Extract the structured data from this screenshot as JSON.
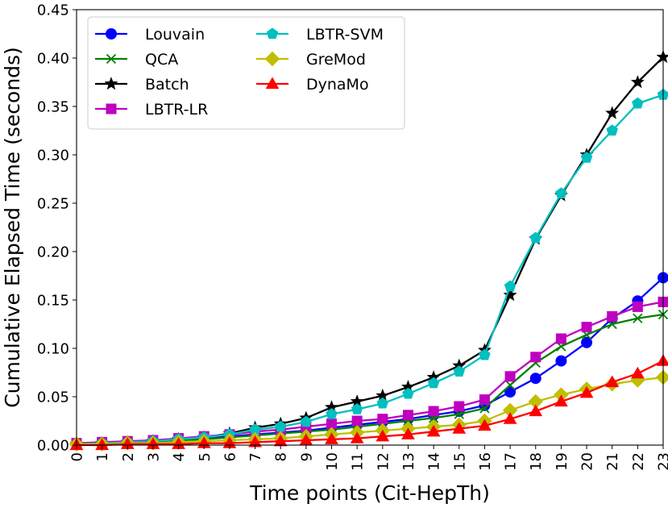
{
  "chart_data": {
    "type": "line",
    "xlabel": "Time points (Cit-HepTh)",
    "ylabel": "Cumulative Elapsed Time (seconds)",
    "xlim": [
      0,
      23
    ],
    "ylim": [
      0,
      0.45
    ],
    "x_ticks": [
      "0",
      "1",
      "2",
      "3",
      "4",
      "5",
      "6",
      "7",
      "8",
      "9",
      "10",
      "11",
      "12",
      "13",
      "14",
      "15",
      "16",
      "17",
      "18",
      "19",
      "20",
      "21",
      "22",
      "23"
    ],
    "y_ticks": [
      "0.00",
      "0.05",
      "0.10",
      "0.15",
      "0.20",
      "0.25",
      "0.30",
      "0.35",
      "0.40",
      "0.45"
    ],
    "y_tick_values": [
      0,
      0.05,
      0.1,
      0.15,
      0.2,
      0.25,
      0.3,
      0.35,
      0.4,
      0.45
    ],
    "legend_position": "upper-left",
    "x": [
      0,
      1,
      2,
      3,
      4,
      5,
      6,
      7,
      8,
      9,
      10,
      11,
      12,
      13,
      14,
      15,
      16,
      17,
      18,
      19,
      20,
      21,
      22,
      23
    ],
    "series": [
      {
        "name": "Louvain",
        "color": "#0000ff",
        "marker": "circle",
        "values": [
          0.001,
          0.002,
          0.003,
          0.004,
          0.005,
          0.007,
          0.009,
          0.011,
          0.013,
          0.015,
          0.018,
          0.021,
          0.024,
          0.027,
          0.031,
          0.035,
          0.041,
          0.055,
          0.069,
          0.087,
          0.106,
          0.131,
          0.149,
          0.173
        ]
      },
      {
        "name": "QCA",
        "color": "#008000",
        "marker": "x",
        "values": [
          0.001,
          0.002,
          0.003,
          0.004,
          0.005,
          0.006,
          0.008,
          0.01,
          0.012,
          0.014,
          0.016,
          0.019,
          0.022,
          0.025,
          0.028,
          0.032,
          0.038,
          0.062,
          0.085,
          0.102,
          0.114,
          0.125,
          0.131,
          0.135
        ]
      },
      {
        "name": "Batch",
        "color": "#000000",
        "marker": "star",
        "values": [
          0.001,
          0.002,
          0.003,
          0.004,
          0.006,
          0.008,
          0.012,
          0.018,
          0.022,
          0.028,
          0.039,
          0.045,
          0.051,
          0.06,
          0.07,
          0.082,
          0.098,
          0.155,
          0.213,
          0.258,
          0.3,
          0.343,
          0.375,
          0.401
        ]
      },
      {
        "name": "LBTR-LR",
        "color": "#bf00bf",
        "marker": "square",
        "values": [
          0.002,
          0.003,
          0.004,
          0.005,
          0.007,
          0.009,
          0.011,
          0.014,
          0.016,
          0.019,
          0.022,
          0.025,
          0.027,
          0.031,
          0.035,
          0.04,
          0.047,
          0.071,
          0.091,
          0.11,
          0.122,
          0.133,
          0.143,
          0.148
        ]
      },
      {
        "name": "LBTR-SVM",
        "color": "#00bfbf",
        "marker": "pentagon",
        "values": [
          0.001,
          0.002,
          0.003,
          0.004,
          0.006,
          0.008,
          0.011,
          0.016,
          0.019,
          0.024,
          0.032,
          0.037,
          0.043,
          0.053,
          0.064,
          0.076,
          0.093,
          0.164,
          0.214,
          0.26,
          0.297,
          0.325,
          0.353,
          0.362
        ]
      },
      {
        "name": "GreMod",
        "color": "#bfbf00",
        "marker": "diamond",
        "values": [
          0.001,
          0.001,
          0.002,
          0.002,
          0.003,
          0.004,
          0.005,
          0.006,
          0.007,
          0.009,
          0.011,
          0.013,
          0.015,
          0.017,
          0.019,
          0.021,
          0.025,
          0.036,
          0.045,
          0.052,
          0.058,
          0.063,
          0.067,
          0.07
        ]
      },
      {
        "name": "DynaMo",
        "color": "#ff0000",
        "marker": "triangle",
        "values": [
          0.0,
          0.0,
          0.001,
          0.001,
          0.001,
          0.002,
          0.002,
          0.003,
          0.004,
          0.005,
          0.006,
          0.007,
          0.009,
          0.011,
          0.014,
          0.017,
          0.02,
          0.027,
          0.035,
          0.045,
          0.054,
          0.065,
          0.074,
          0.087
        ]
      }
    ]
  }
}
